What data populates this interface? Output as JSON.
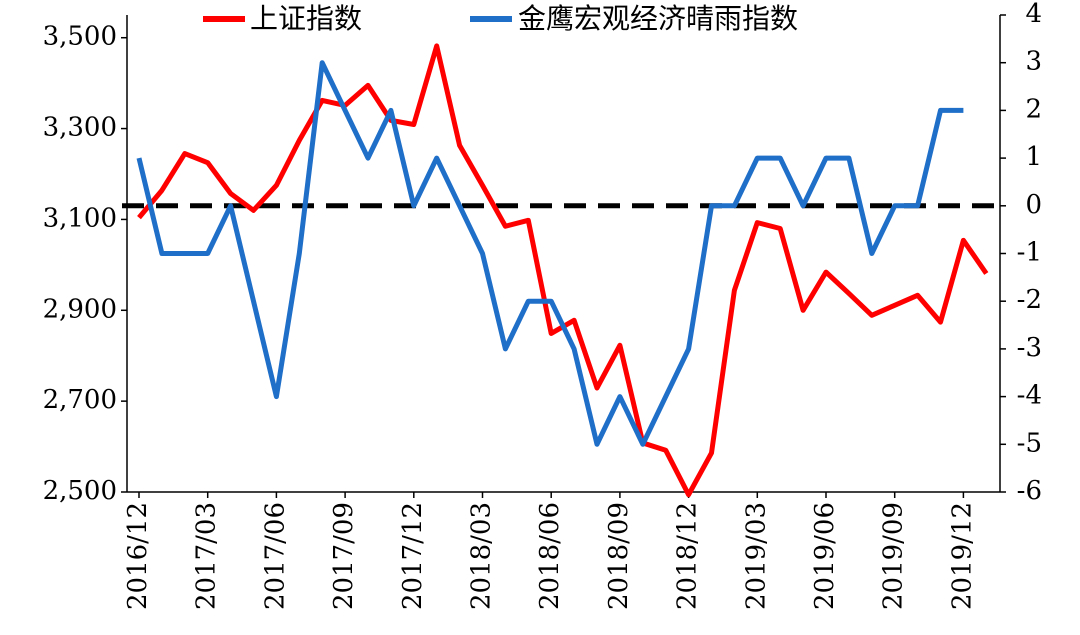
{
  "chart_data": {
    "type": "line",
    "categories": [
      "2016/12",
      null,
      null,
      "2017/03",
      null,
      null,
      "2017/06",
      null,
      null,
      "2017/09",
      null,
      null,
      "2017/12",
      null,
      null,
      "2018/03",
      null,
      null,
      "2018/06",
      null,
      null,
      "2018/09",
      null,
      null,
      "2018/12",
      null,
      null,
      "2019/03",
      null,
      null,
      "2019/06",
      null,
      null,
      "2019/09",
      null,
      null,
      "2019/12",
      null
    ],
    "series": [
      {
        "name": "上证指数",
        "color": "#ff0000",
        "values": [
          3104,
          3164,
          3245,
          3225,
          3157,
          3120,
          3175,
          3274,
          3362,
          3351,
          3395,
          3318,
          3309,
          3482,
          3263,
          3175,
          3085,
          3098,
          2849,
          2878,
          2729,
          2823,
          2608,
          2592,
          2494,
          2586,
          2944,
          3093,
          3080,
          2900,
          2984,
          2937,
          2889,
          2911,
          2933,
          2874,
          3054,
          2981
        ]
      },
      {
        "name": "金鹰宏观经济晴雨指数",
        "color": "#1f6fc9",
        "axis": "y2",
        "values": [
          1,
          -1,
          -1,
          -1,
          0,
          -2,
          -4,
          -1,
          3,
          2,
          1,
          2,
          0,
          1,
          0,
          -1,
          -3,
          -2,
          -2,
          -3,
          -5,
          -4,
          -5,
          -4,
          -3,
          0,
          0,
          1,
          1,
          0,
          1,
          1,
          -1,
          0,
          0,
          2,
          2,
          null
        ]
      }
    ],
    "ylim": [
      2500,
      3550
    ],
    "yticks": [
      {
        "value": 2500,
        "label": "2,500"
      },
      {
        "value": 2700,
        "label": "2,700"
      },
      {
        "value": 2900,
        "label": "2,900"
      },
      {
        "value": 3100,
        "label": "3,100"
      },
      {
        "value": 3300,
        "label": "3,300"
      },
      {
        "value": 3500,
        "label": "3,500"
      }
    ],
    "y2lim": [
      -6,
      4
    ],
    "y2ticks": [
      -6,
      -5,
      -4,
      -3,
      -2,
      -1,
      0,
      1,
      2,
      3,
      4
    ],
    "reference_line": {
      "axis": "y2",
      "value": 0,
      "color": "#000000"
    },
    "legend": "top"
  }
}
